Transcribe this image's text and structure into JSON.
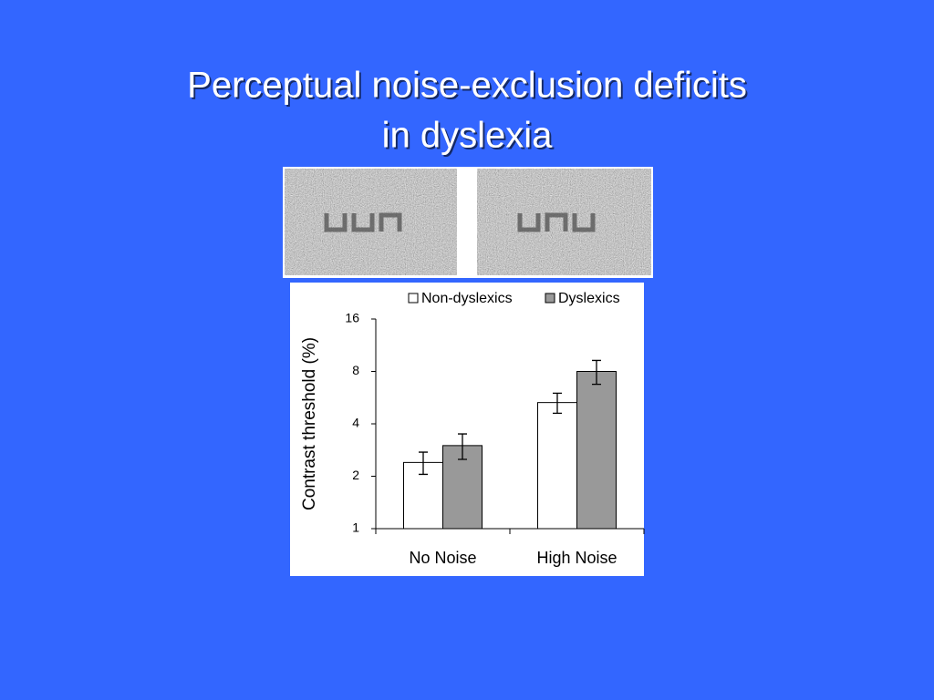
{
  "chart_data": {
    "type": "bar",
    "title": [
      "Perceptual noise-exclusion deficits",
      "in dyslexia"
    ],
    "y_label": "Contrast threshold (%)",
    "categories": [
      "No Noise",
      "High Noise"
    ],
    "series": [
      {
        "name": "Non-dyslexics",
        "color": "#ffffff",
        "values": [
          2.4,
          5.3
        ],
        "errors": [
          0.35,
          0.7
        ]
      },
      {
        "name": "Dyslexics",
        "color": "#999999",
        "values": [
          3.0,
          8.0
        ],
        "errors": [
          0.5,
          1.25
        ]
      }
    ],
    "ylim": [
      1,
      16
    ],
    "yticks": [
      1,
      2,
      4,
      8,
      16
    ],
    "log_scale": true,
    "grid": false,
    "legend": "top"
  }
}
